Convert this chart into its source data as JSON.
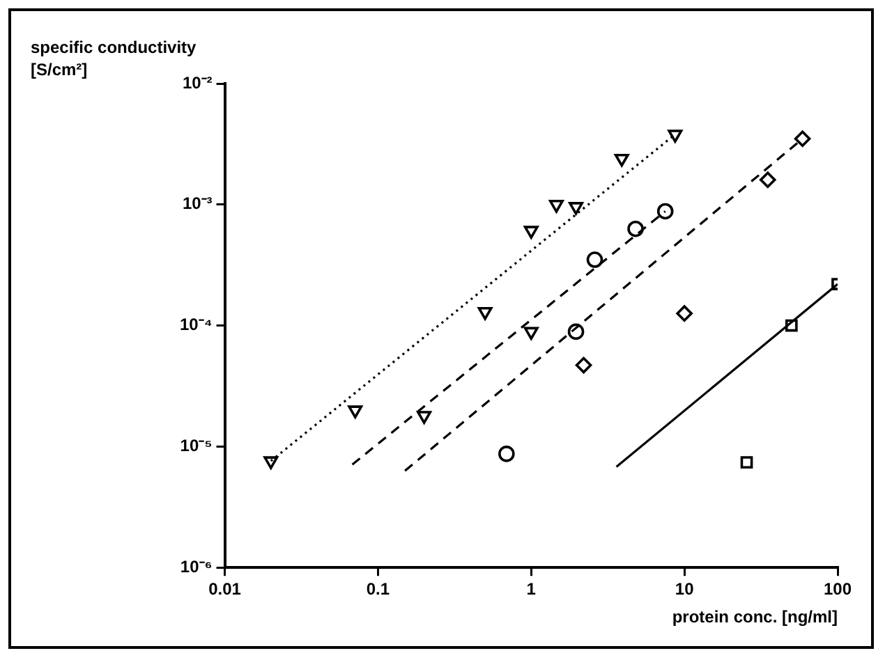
{
  "chart_data": {
    "type": "scatter",
    "xlabel": "protein conc. [ng/ml]",
    "ylabel": "specific conductivity [S/cm²]",
    "log": "xy",
    "grid": false,
    "legend": false,
    "xlim": [
      0.01,
      100
    ],
    "xticks": [
      0.01,
      0.1,
      1,
      10,
      100
    ],
    "ylim": [
      1e-06,
      0.01
    ],
    "yticks": [
      {
        "value": 1e-06,
        "label": "10⁻⁶"
      },
      {
        "value": 1e-05,
        "label": "10⁻⁵"
      },
      {
        "value": 0.0001,
        "label": "10⁻⁴"
      },
      {
        "value": 0.001,
        "label": "10⁻³"
      },
      {
        "value": 0.01,
        "label": "10⁻²"
      }
    ],
    "series": [
      {
        "marker": "triangle",
        "color": "#000000",
        "x": [
          0.02,
          0.071,
          0.2,
          0.5,
          1,
          1,
          1.46,
          1.96,
          3.9,
          8.7
        ],
        "values": [
          7.6e-06,
          2e-05,
          1.8e-05,
          0.00013,
          8.9e-05,
          0.00061,
          0.001,
          0.00096,
          0.0024,
          0.0038
        ]
      },
      {
        "marker": "circle",
        "color": "#000000",
        "x": [
          0.69,
          1.96,
          2.6,
          4.8,
          7.5
        ],
        "values": [
          8.7e-06,
          8.9e-05,
          0.00035,
          0.00063,
          0.00088
        ]
      },
      {
        "marker": "diamond",
        "color": "#000000",
        "x": [
          2.2,
          10,
          35,
          59
        ],
        "values": [
          4.7e-05,
          0.000126,
          0.0016,
          0.0035
        ]
      },
      {
        "marker": "square",
        "color": "#000000",
        "x": [
          25.5,
          50,
          100
        ],
        "values": [
          7.4e-06,
          0.0001,
          0.00022
        ]
      },
      {
        "type": "line",
        "marker": "none",
        "line_style": "dotted",
        "color": "#000000",
        "x": [
          0.02,
          8.7
        ],
        "values": [
          7.6e-06,
          0.0038
        ]
      },
      {
        "type": "line",
        "marker": "none",
        "line_style": "dashed",
        "color": "#000000",
        "x": [
          0.068,
          7.5
        ],
        "values": [
          7.1e-06,
          0.00088
        ]
      },
      {
        "type": "line",
        "marker": "none",
        "line_style": "dashed",
        "color": "#000000",
        "x": [
          0.15,
          59
        ],
        "values": [
          6.3e-06,
          0.0035
        ]
      },
      {
        "type": "line",
        "marker": "none",
        "line_style": "solid",
        "color": "#000000",
        "x": [
          3.6,
          100
        ],
        "values": [
          6.8e-06,
          0.00022
        ]
      }
    ]
  }
}
